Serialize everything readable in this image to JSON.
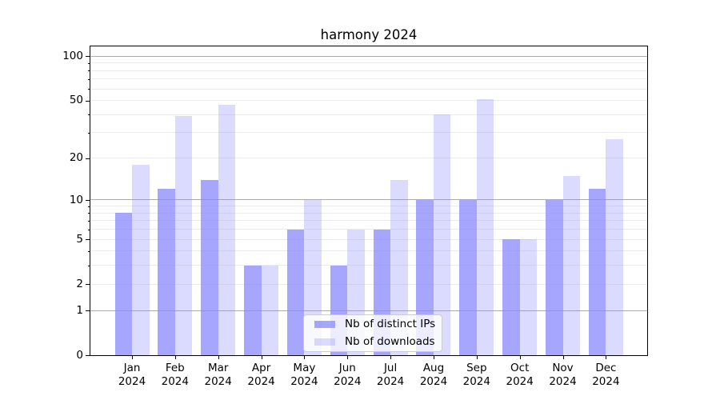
{
  "title": "harmony 2024",
  "colors": {
    "bar_base": "#8888ff",
    "series_ips": "rgba(136,136,255,0.75)",
    "series_downloads": "rgba(136,136,255,0.30)",
    "major_grid": "#ababab",
    "minor_grid": "#ebebeb",
    "spine": "#000000"
  },
  "chart_data": {
    "type": "bar",
    "title": "harmony 2024",
    "categories": [
      "Jan 2024",
      "Feb 2024",
      "Mar 2024",
      "Apr 2024",
      "May 2024",
      "Jun 2024",
      "Jul 2024",
      "Aug 2024",
      "Sep 2024",
      "Oct 2024",
      "Nov 2024",
      "Dec 2024"
    ],
    "series": [
      {
        "name": "Nb of distinct IPs",
        "color": "rgba(136,136,255,0.75)",
        "values": [
          8,
          12,
          14,
          3,
          6,
          3,
          6,
          10,
          10,
          5,
          10,
          12
        ]
      },
      {
        "name": "Nb of downloads",
        "color": "rgba(136,136,255,0.30)",
        "values": [
          18,
          39,
          47,
          3,
          10,
          6,
          14,
          40,
          51,
          5,
          15,
          27
        ]
      }
    ],
    "xlabel": "",
    "ylabel": "",
    "yscale": "log1p",
    "ylim": [
      0,
      117
    ],
    "ytick_values": [
      0,
      1,
      2,
      5,
      10,
      20,
      50,
      100
    ],
    "ytick_labels": [
      "0",
      "1",
      "2",
      "5",
      "10",
      "20",
      "50",
      "100"
    ],
    "major_grid_values": [
      1,
      10,
      100
    ],
    "minor_grid_values": [
      2,
      3,
      4,
      5,
      6,
      7,
      8,
      9,
      20,
      30,
      40,
      50,
      60,
      70,
      80,
      90
    ],
    "grid": "on",
    "legend_position": "lower center (inside plot)"
  }
}
